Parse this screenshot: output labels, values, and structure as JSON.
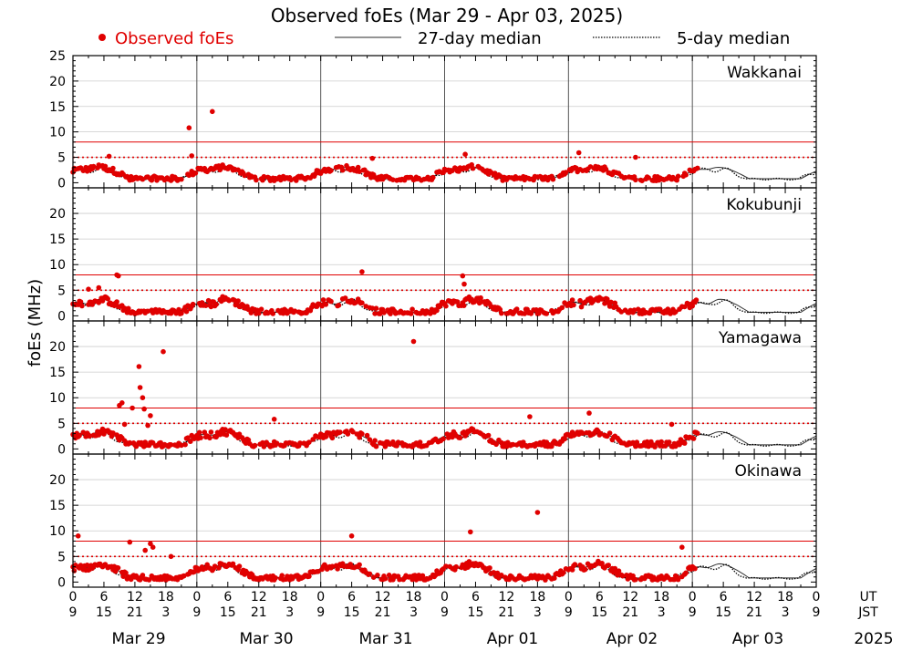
{
  "chart_data": {
    "type": "scatter",
    "title": "Observed foEs (Mar 29 - Apr 03, 2025)",
    "ylabel": "foEs (MHz)",
    "ylim": [
      -1,
      25
    ],
    "yticks": [
      0,
      5,
      10,
      15,
      20,
      25
    ],
    "legend": {
      "observed": "Observed foEs",
      "median27": "27-day median",
      "median5": "5-day median",
      "placement": "top"
    },
    "colors": {
      "observed": "#e00000",
      "median": "#000000",
      "threshold": "#e00000",
      "grid": "#cccccc"
    },
    "reference_lines": {
      "dotted": 5,
      "solid": 8
    },
    "x_hours_total": 144,
    "x_ticks_ut": [
      "0",
      "6",
      "12",
      "18",
      "0",
      "6",
      "12",
      "18",
      "0",
      "6",
      "12",
      "18",
      "0",
      "6",
      "12",
      "18",
      "0",
      "6",
      "12",
      "18",
      "0",
      "6",
      "12",
      "18",
      "0"
    ],
    "x_ticks_jst": [
      "9",
      "15",
      "21",
      "3",
      "9",
      "15",
      "21",
      "3",
      "9",
      "15",
      "21",
      "3",
      "9",
      "15",
      "21",
      "3",
      "9",
      "15",
      "21",
      "3",
      "9",
      "15",
      "21",
      "3",
      "9"
    ],
    "x_unit_labels": {
      "ut": "UT",
      "jst": "JST"
    },
    "date_labels": [
      "Mar 29",
      "Mar 30",
      "Mar 31",
      "Apr 01",
      "Apr 02",
      "Apr 03"
    ],
    "year_label": "2025",
    "observed_end_hour": 121,
    "stations": [
      {
        "name": "Wakkanai",
        "profile": {
          "day": 3.2,
          "night": 0.8,
          "noise": 0.7,
          "midday_dip": 0.2
        },
        "outliers": [
          {
            "h": 22.5,
            "v": 10.8
          },
          {
            "h": 23.0,
            "v": 5.3
          },
          {
            "h": 27.0,
            "v": 14.0
          },
          {
            "h": 7.0,
            "v": 5.2
          },
          {
            "h": 58.0,
            "v": 4.8
          },
          {
            "h": 76.0,
            "v": 5.6
          },
          {
            "h": 98.0,
            "v": 5.9
          },
          {
            "h": 109.0,
            "v": 5.0
          }
        ]
      },
      {
        "name": "Kokubunji",
        "profile": {
          "day": 3.5,
          "night": 0.7,
          "noise": 0.9,
          "midday_dip": 0.4
        },
        "outliers": [
          {
            "h": 8.5,
            "v": 8.0
          },
          {
            "h": 8.8,
            "v": 7.8
          },
          {
            "h": 56.0,
            "v": 8.6
          },
          {
            "h": 75.5,
            "v": 7.8
          },
          {
            "h": 75.8,
            "v": 6.2
          },
          {
            "h": 5.0,
            "v": 5.5
          },
          {
            "h": 3.0,
            "v": 5.2
          }
        ]
      },
      {
        "name": "Yamagawa",
        "profile": {
          "day": 3.6,
          "night": 0.8,
          "noise": 0.9,
          "midday_dip": 0.3
        },
        "outliers": [
          {
            "h": 9.0,
            "v": 8.5
          },
          {
            "h": 9.5,
            "v": 9.0
          },
          {
            "h": 11.5,
            "v": 8.0
          },
          {
            "h": 12.8,
            "v": 16.1
          },
          {
            "h": 13.0,
            "v": 12.0
          },
          {
            "h": 13.5,
            "v": 10.0
          },
          {
            "h": 13.8,
            "v": 7.8
          },
          {
            "h": 15.0,
            "v": 6.5
          },
          {
            "h": 17.5,
            "v": 19.0
          },
          {
            "h": 10.0,
            "v": 4.8
          },
          {
            "h": 14.5,
            "v": 4.6
          },
          {
            "h": 66.0,
            "v": 21.0
          },
          {
            "h": 88.5,
            "v": 6.3
          },
          {
            "h": 100.0,
            "v": 7.0
          },
          {
            "h": 39.0,
            "v": 5.8
          },
          {
            "h": 116.0,
            "v": 4.8
          }
        ]
      },
      {
        "name": "Okinawa",
        "profile": {
          "day": 3.8,
          "night": 0.8,
          "noise": 0.8,
          "midday_dip": 0.3
        },
        "outliers": [
          {
            "h": 1.0,
            "v": 9.0
          },
          {
            "h": 11.0,
            "v": 7.8
          },
          {
            "h": 15.0,
            "v": 7.5
          },
          {
            "h": 15.5,
            "v": 6.8
          },
          {
            "h": 14.0,
            "v": 6.2
          },
          {
            "h": 54.0,
            "v": 9.0
          },
          {
            "h": 77.0,
            "v": 9.8
          },
          {
            "h": 90.0,
            "v": 13.6
          },
          {
            "h": 118.0,
            "v": 6.8
          },
          {
            "h": 19.0,
            "v": 5.0
          }
        ]
      }
    ]
  }
}
